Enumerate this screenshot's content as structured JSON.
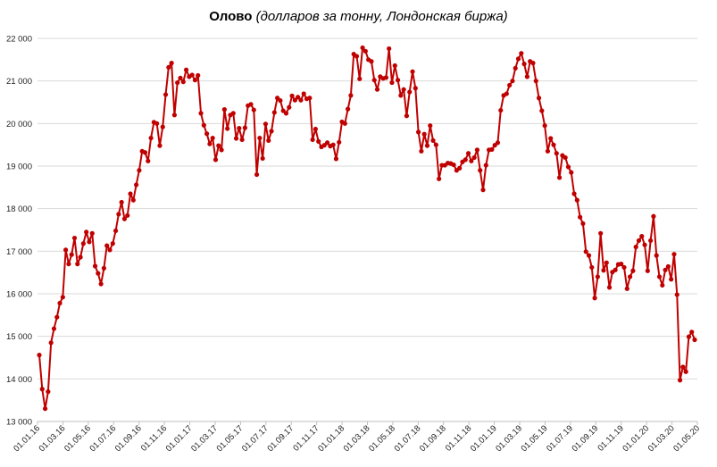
{
  "chart_data": {
    "type": "line",
    "title": "Олово",
    "subtitle": "(долларов за тонну, Лондонская биржа)",
    "color": "#C00000",
    "grid": true,
    "ylim": [
      13000,
      22000
    ],
    "y_ticks": [
      "13 000",
      "14 000",
      "15 000",
      "16 000",
      "17 000",
      "18 000",
      "19 000",
      "20 000",
      "21 000",
      "22 000"
    ],
    "x_ticks": [
      "01.01.16",
      "01.03.16",
      "01.05.16",
      "01.07.16",
      "01.09.16",
      "01.11.16",
      "01.01.17",
      "01.03.17",
      "01.05.17",
      "01.07.17",
      "01.09.17",
      "01.11.17",
      "01.01.18",
      "01.03.18",
      "01.05.18",
      "01.07.18",
      "01.09.18",
      "01.11.18",
      "01.01.19",
      "01.03.19",
      "01.05.19",
      "01.07.19",
      "01.09.19",
      "01.11.19",
      "01.01.20",
      "01.03.20",
      "01.05.20"
    ],
    "values": [
      14560,
      13760,
      13300,
      13700,
      14850,
      15180,
      15450,
      15780,
      15920,
      17030,
      16700,
      16920,
      17310,
      16700,
      16860,
      17180,
      17450,
      17220,
      17420,
      16650,
      16480,
      16230,
      16600,
      17130,
      17030,
      17180,
      17480,
      17870,
      18150,
      17760,
      17840,
      18350,
      18200,
      18560,
      18900,
      19350,
      19320,
      19120,
      19660,
      20030,
      20000,
      19480,
      19920,
      20680,
      21320,
      21420,
      20200,
      20960,
      21070,
      20980,
      21260,
      21100,
      21140,
      21020,
      21130,
      20240,
      19960,
      19760,
      19520,
      19660,
      19150,
      19480,
      19380,
      20330,
      19880,
      20200,
      20240,
      19650,
      19890,
      19620,
      19900,
      20420,
      20450,
      20320,
      18800,
      19660,
      19180,
      19990,
      19600,
      19820,
      20260,
      20600,
      20540,
      20300,
      20240,
      20380,
      20650,
      20550,
      20620,
      20550,
      20700,
      20580,
      20600,
      19620,
      19870,
      19580,
      19450,
      19490,
      19550,
      19470,
      19500,
      19170,
      19560,
      20040,
      20000,
      20340,
      20660,
      21630,
      21580,
      21050,
      21780,
      21700,
      21500,
      21460,
      21020,
      20800,
      21100,
      21060,
      21080,
      21760,
      20960,
      21360,
      21020,
      20660,
      20800,
      20180,
      20740,
      21220,
      20830,
      19800,
      19350,
      19750,
      19480,
      19950,
      19600,
      19500,
      18700,
      19020,
      19020,
      19070,
      19060,
      19030,
      18900,
      18950,
      19100,
      19150,
      19300,
      19120,
      19200,
      19380,
      18900,
      18440,
      19020,
      19380,
      19390,
      19490,
      19550,
      20310,
      20660,
      20700,
      20900,
      21000,
      21300,
      21520,
      21650,
      21400,
      21100,
      21460,
      21420,
      21000,
      20600,
      20300,
      19950,
      19350,
      19650,
      19500,
      19300,
      18730,
      19250,
      19200,
      18980,
      18850,
      18350,
      18200,
      17800,
      17650,
      16990,
      16900,
      16620,
      15900,
      16400,
      17420,
      16550,
      16730,
      16150,
      16510,
      16560,
      16690,
      16700,
      16620,
      16120,
      16400,
      16540,
      17100,
      17250,
      17350,
      17150,
      16540,
      17250,
      17820,
      16900,
      16400,
      16200,
      16560,
      16640,
      16340,
      16930,
      15980,
      13970,
      14280,
      14170,
      14990,
      15100,
      14920
    ]
  }
}
